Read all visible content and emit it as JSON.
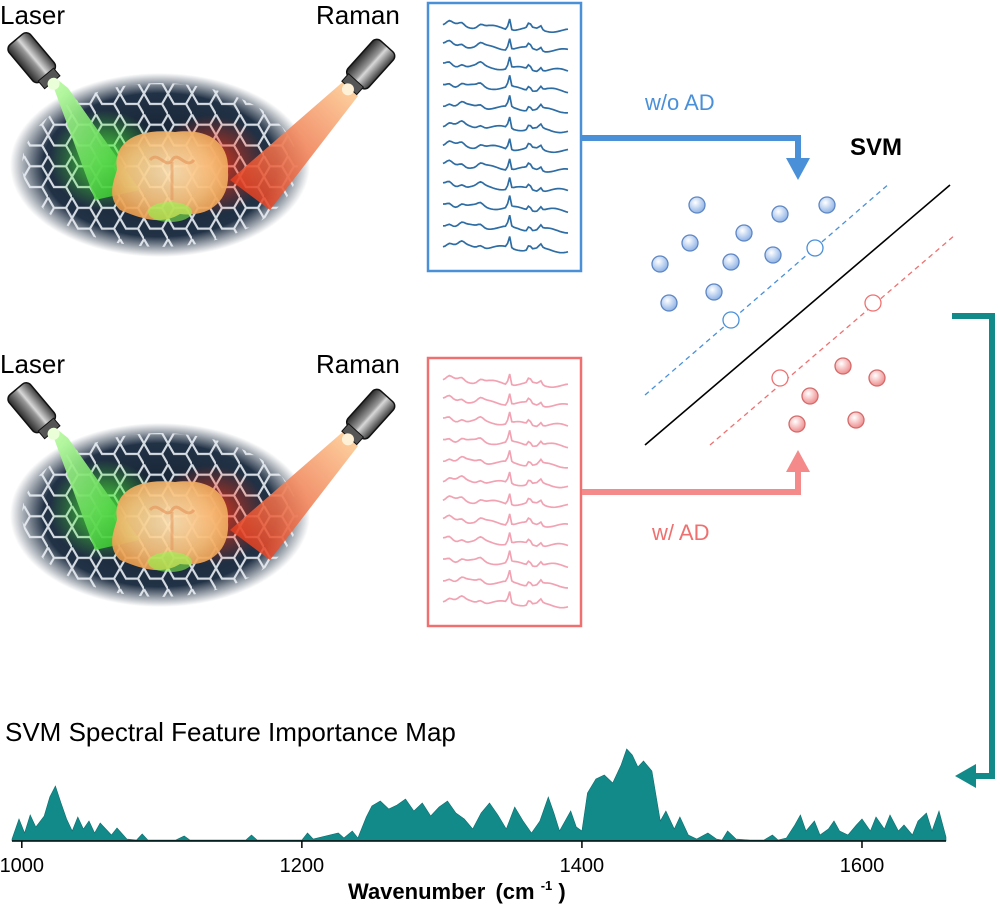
{
  "scene_top": {
    "laser_label": "Laser",
    "raman_label": "Raman"
  },
  "scene_bottom": {
    "laser_label": "Laser",
    "raman_label": "Raman"
  },
  "arrows": {
    "wo_ad_label": "w/o AD",
    "w_ad_label": "w/ AD"
  },
  "svm": {
    "title": "SVM"
  },
  "colors": {
    "blue": "#4a90d9",
    "blue_spectrum": "#2e6da4",
    "pink": "#f07f7f",
    "pink_spectrum": "#f2a3b3",
    "teal": "#138a8a",
    "axis": "#000000"
  },
  "chart_data": {
    "type": "area",
    "title": "SVM Spectral Feature Importance Map",
    "xlabel_main": "Wavenumber",
    "xlabel_unit": "(cm",
    "xlabel_sup": "-1",
    "xlabel_close": ")",
    "ylabel": "",
    "xlim": [
      993,
      1660
    ],
    "ylim": [
      0,
      1
    ],
    "xticks": [
      "1000",
      "1200",
      "1400",
      "1600"
    ],
    "series": [
      {
        "x": [
          993,
          998,
          1002,
          1006,
          1010,
          1016,
          1020,
          1024,
          1028,
          1032,
          1036,
          1040,
          1044,
          1048,
          1052,
          1056,
          1060,
          1064,
          1068,
          1075,
          1082,
          1086,
          1090,
          1110,
          1116,
          1120,
          1160,
          1164,
          1168,
          1200,
          1204,
          1208,
          1226,
          1230,
          1236,
          1240,
          1246,
          1250,
          1256,
          1262,
          1268,
          1274,
          1280,
          1286,
          1292,
          1298,
          1304,
          1310,
          1316,
          1322,
          1328,
          1334,
          1340,
          1346,
          1352,
          1358,
          1364,
          1370,
          1376,
          1380,
          1384,
          1388,
          1392,
          1396,
          1400,
          1404,
          1410,
          1416,
          1422,
          1428,
          1432,
          1436,
          1440,
          1444,
          1450,
          1456,
          1460,
          1466,
          1470,
          1476,
          1482,
          1490,
          1496,
          1500,
          1504,
          1510,
          1520,
          1530,
          1536,
          1540,
          1546,
          1552,
          1556,
          1560,
          1566,
          1570,
          1576,
          1580,
          1584,
          1590,
          1596,
          1600,
          1606,
          1610,
          1616,
          1620,
          1626,
          1630,
          1636,
          1640,
          1646,
          1650,
          1655,
          1660
        ],
        "values": [
          0.02,
          0.22,
          0.08,
          0.26,
          0.14,
          0.25,
          0.44,
          0.55,
          0.38,
          0.22,
          0.1,
          0.24,
          0.12,
          0.2,
          0.08,
          0.18,
          0.12,
          0.06,
          0.13,
          0.02,
          0.01,
          0.07,
          0.01,
          0.01,
          0.05,
          0.01,
          0.01,
          0.06,
          0.01,
          0.01,
          0.08,
          0.02,
          0.08,
          0.03,
          0.1,
          0.03,
          0.24,
          0.35,
          0.4,
          0.32,
          0.36,
          0.42,
          0.3,
          0.38,
          0.25,
          0.34,
          0.4,
          0.28,
          0.22,
          0.12,
          0.28,
          0.38,
          0.26,
          0.12,
          0.34,
          0.2,
          0.08,
          0.2,
          0.44,
          0.28,
          0.1,
          0.2,
          0.3,
          0.14,
          0.1,
          0.48,
          0.62,
          0.66,
          0.58,
          0.76,
          0.92,
          0.86,
          0.74,
          0.8,
          0.7,
          0.2,
          0.3,
          0.12,
          0.24,
          0.06,
          0.02,
          0.08,
          0.02,
          0.01,
          0.1,
          0.02,
          0.01,
          0.01,
          0.06,
          0.01,
          0.03,
          0.16,
          0.26,
          0.1,
          0.2,
          0.06,
          0.12,
          0.2,
          0.1,
          0.06,
          0.16,
          0.22,
          0.1,
          0.24,
          0.12,
          0.26,
          0.1,
          0.16,
          0.06,
          0.2,
          0.28,
          0.1,
          0.3,
          0.04
        ]
      }
    ]
  }
}
